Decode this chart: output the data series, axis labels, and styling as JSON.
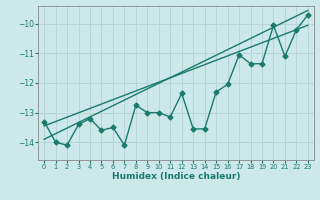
{
  "xlabel": "Humidex (Indice chaleur)",
  "bg_color": "#cce8e8",
  "grid_color": "#b8d4d4",
  "line_color": "#1a7a6e",
  "spine_color": "#888888",
  "tick_color": "#1a7a6e",
  "xlim": [
    -0.5,
    23.5
  ],
  "ylim": [
    -14.6,
    -9.4
  ],
  "yticks": [
    -14,
    -13,
    -12,
    -11,
    -10
  ],
  "xticks": [
    0,
    1,
    2,
    3,
    4,
    5,
    6,
    7,
    8,
    9,
    10,
    11,
    12,
    13,
    14,
    15,
    16,
    17,
    18,
    19,
    20,
    21,
    22,
    23
  ],
  "data_x": [
    0,
    1,
    2,
    3,
    4,
    5,
    6,
    7,
    8,
    9,
    10,
    11,
    12,
    13,
    14,
    15,
    16,
    17,
    18,
    19,
    20,
    21,
    22,
    23
  ],
  "data_y": [
    -13.3,
    -14.0,
    -14.1,
    -13.4,
    -13.2,
    -13.6,
    -13.5,
    -14.1,
    -12.75,
    -13.0,
    -13.0,
    -13.15,
    -12.35,
    -13.55,
    -13.55,
    -12.3,
    -12.05,
    -11.05,
    -11.35,
    -11.35,
    -10.05,
    -11.1,
    -10.2,
    -9.7
  ],
  "line1_x": [
    0,
    23
  ],
  "line1_y": [
    -13.9,
    -9.55
  ],
  "line2_x": [
    0,
    23
  ],
  "line2_y": [
    -13.45,
    -10.05
  ],
  "marker": "D",
  "marker_size": 2.5,
  "line_width": 1.0,
  "tick_fontsize": 5.5,
  "label_fontsize": 6.5
}
